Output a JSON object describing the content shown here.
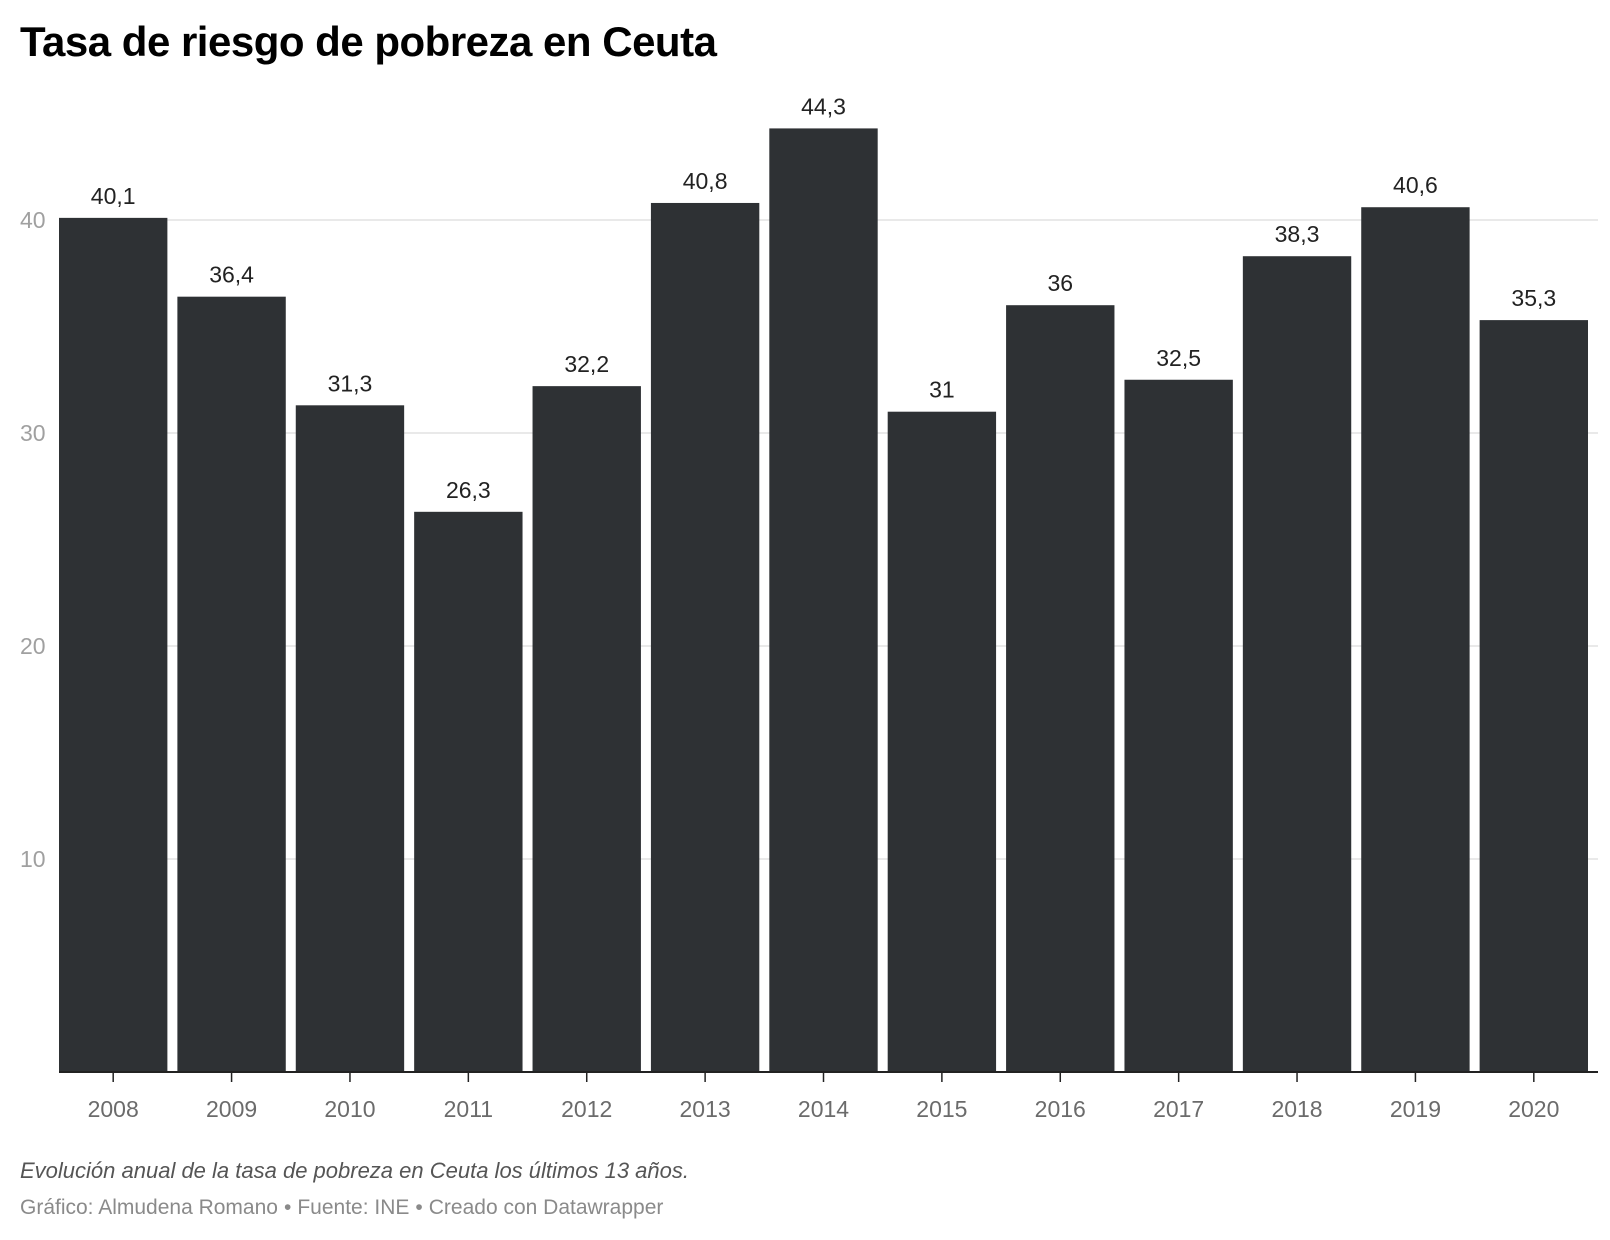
{
  "header": {
    "title": "Tasa de riesgo de pobreza en Ceuta"
  },
  "footer": {
    "notes": "Evolución anual de la tasa de pobreza en Ceuta los últimos 13 años.",
    "credit_graphic": "Gráfico: Almudena Romano",
    "credit_source": "Fuente: INE",
    "credit_tool": "Creado con Datawrapper",
    "separator": "•"
  },
  "colors": {
    "bar": "#2e3134",
    "grid": "#e2e2e2",
    "axis": "#222222"
  },
  "chart_data": {
    "type": "bar",
    "title": "Tasa de riesgo de pobreza en Ceuta",
    "xlabel": "",
    "ylabel": "",
    "categories": [
      "2008",
      "2009",
      "2010",
      "2011",
      "2012",
      "2013",
      "2014",
      "2015",
      "2016",
      "2017",
      "2018",
      "2019",
      "2020"
    ],
    "values": [
      40.1,
      36.4,
      31.3,
      26.3,
      32.2,
      40.8,
      44.3,
      31,
      36,
      32.5,
      38.3,
      40.6,
      35.3
    ],
    "value_labels": [
      "40,1",
      "36,4",
      "31,3",
      "26,3",
      "32,2",
      "40,8",
      "44,3",
      "31",
      "36",
      "32,5",
      "38,3",
      "40,6",
      "35,3"
    ],
    "y_ticks": [
      10,
      20,
      30,
      40
    ],
    "ylim": [
      0,
      45
    ],
    "grid": true,
    "legend": "none"
  }
}
